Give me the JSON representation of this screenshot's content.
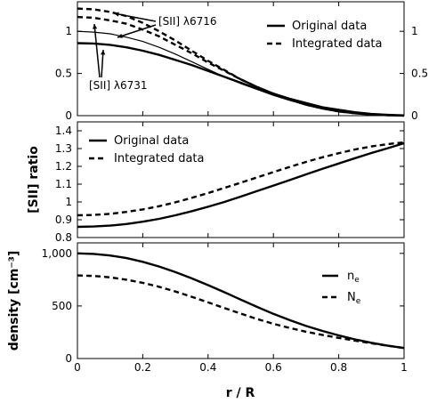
{
  "figure": {
    "x_axis_label": "r / R",
    "x_ticks": [
      "0",
      "0.2",
      "0.4",
      "0.6",
      "0.8",
      "1"
    ]
  },
  "chart_data": [
    {
      "type": "line",
      "panel": "top",
      "xlim": [
        0,
        1
      ],
      "ylim": [
        0,
        1.35
      ],
      "y_ticks_left": [
        "0",
        "0.5",
        "1"
      ],
      "y_ticks_right": [
        "0",
        "0.5",
        "1"
      ],
      "legend": [
        "Original data",
        "Integrated data"
      ],
      "legend_position": "top-right",
      "annotations": [
        "[SII] λ6716",
        "[SII] λ6731"
      ],
      "x": [
        0,
        0.05,
        0.1,
        0.15,
        0.2,
        0.25,
        0.3,
        0.35,
        0.4,
        0.45,
        0.5,
        0.55,
        0.6,
        0.65,
        0.7,
        0.75,
        0.8,
        0.85,
        0.9,
        0.95,
        1.0
      ],
      "series": [
        {
          "name": "Original data",
          "label": "[SII] λ6716",
          "style": "solid",
          "width": "thin",
          "values": [
            1.0,
            0.99,
            0.97,
            0.93,
            0.88,
            0.81,
            0.73,
            0.64,
            0.55,
            0.46,
            0.38,
            0.31,
            0.24,
            0.18,
            0.13,
            0.09,
            0.06,
            0.035,
            0.018,
            0.008,
            0.003
          ]
        },
        {
          "name": "Original data",
          "label": "[SII] λ6731",
          "style": "solid",
          "width": "thick",
          "values": [
            0.86,
            0.855,
            0.84,
            0.81,
            0.77,
            0.72,
            0.66,
            0.6,
            0.53,
            0.46,
            0.39,
            0.32,
            0.26,
            0.2,
            0.15,
            0.1,
            0.07,
            0.04,
            0.02,
            0.009,
            0.003
          ]
        },
        {
          "name": "Integrated data",
          "label": "[SII] λ6716",
          "style": "dashed",
          "width": "thick",
          "values": [
            1.27,
            1.26,
            1.23,
            1.18,
            1.1,
            1.0,
            0.89,
            0.77,
            0.65,
            0.54,
            0.43,
            0.34,
            0.26,
            0.19,
            0.13,
            0.085,
            0.05,
            0.028,
            0.013,
            0.005,
            0.0
          ]
        },
        {
          "name": "Integrated data",
          "label": "[SII] λ6731",
          "style": "dashed",
          "width": "thick",
          "values": [
            1.17,
            1.16,
            1.13,
            1.09,
            1.02,
            0.94,
            0.84,
            0.74,
            0.63,
            0.53,
            0.43,
            0.34,
            0.26,
            0.19,
            0.13,
            0.085,
            0.05,
            0.028,
            0.013,
            0.005,
            0.0
          ]
        }
      ]
    },
    {
      "type": "line",
      "panel": "middle",
      "xlim": [
        0,
        1
      ],
      "ylim": [
        0.8,
        1.45
      ],
      "ylabel": "[SII] ratio",
      "y_ticks": [
        "0.8",
        "0.9",
        "1",
        "1.1",
        "1.2",
        "1.3",
        "1.4"
      ],
      "legend": [
        "Original data",
        "Integrated data"
      ],
      "legend_position": "top-left",
      "x": [
        0,
        0.05,
        0.1,
        0.15,
        0.2,
        0.25,
        0.3,
        0.35,
        0.4,
        0.45,
        0.5,
        0.55,
        0.6,
        0.65,
        0.7,
        0.75,
        0.8,
        0.85,
        0.9,
        0.95,
        1.0
      ],
      "series": [
        {
          "name": "Original data",
          "style": "solid",
          "values": [
            0.86,
            0.862,
            0.867,
            0.876,
            0.889,
            0.905,
            0.925,
            0.948,
            0.973,
            1.0,
            1.03,
            1.061,
            1.092,
            1.123,
            1.155,
            1.186,
            1.216,
            1.246,
            1.275,
            1.302,
            1.33
          ]
        },
        {
          "name": "Integrated data",
          "style": "dashed",
          "values": [
            0.925,
            0.927,
            0.933,
            0.944,
            0.958,
            0.976,
            0.998,
            1.023,
            1.05,
            1.079,
            1.108,
            1.138,
            1.168,
            1.197,
            1.225,
            1.251,
            1.274,
            1.295,
            1.312,
            1.325,
            1.335
          ]
        }
      ]
    },
    {
      "type": "line",
      "panel": "bottom",
      "xlim": [
        0,
        1
      ],
      "ylim": [
        0,
        1100
      ],
      "ylabel": "density [cm⁻³]",
      "y_ticks": [
        "0",
        "500",
        "1,000"
      ],
      "legend_position": "right",
      "legend": [
        {
          "base": "n",
          "sub": "e"
        },
        {
          "base": "N",
          "sub": "e"
        }
      ],
      "x": [
        0,
        0.05,
        0.1,
        0.15,
        0.2,
        0.25,
        0.3,
        0.35,
        0.4,
        0.45,
        0.5,
        0.55,
        0.6,
        0.65,
        0.7,
        0.75,
        0.8,
        0.85,
        0.9,
        0.95,
        1.0
      ],
      "series": [
        {
          "name": "nₑ",
          "style": "solid",
          "values": [
            1000,
            995,
            980,
            955,
            920,
            875,
            822,
            762,
            698,
            630,
            560,
            491,
            425,
            365,
            310,
            262,
            220,
            182,
            150,
            122,
            100
          ]
        },
        {
          "name": "Nₑ",
          "style": "dashed",
          "values": [
            790,
            785,
            772,
            750,
            720,
            682,
            637,
            587,
            534,
            480,
            427,
            376,
            330,
            290,
            255,
            224,
            196,
            170,
            145,
            122,
            100
          ]
        }
      ]
    }
  ]
}
